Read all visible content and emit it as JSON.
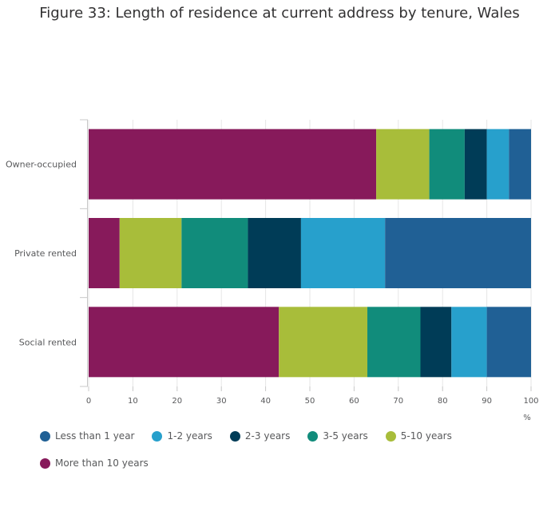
{
  "chart_data": {
    "type": "bar",
    "orientation": "horizontal",
    "stacked": true,
    "title": "Figure 33: Length of residence at current address by tenure, Wales",
    "xlabel": "%",
    "ylabel": "",
    "xlim": [
      0,
      100
    ],
    "xticks": [
      "0",
      "10",
      "20",
      "30",
      "40",
      "50",
      "60",
      "70",
      "80",
      "90",
      "100"
    ],
    "categories": [
      "Owner-occupied",
      "Private rented",
      "Social rented"
    ],
    "series": [
      {
        "name": "More than 10 years",
        "color": "#871a5b",
        "values": [
          65,
          7,
          43
        ]
      },
      {
        "name": "5-10 years",
        "color": "#a8bd3a",
        "values": [
          12,
          14,
          20
        ]
      },
      {
        "name": "3-5 years",
        "color": "#118c7b",
        "values": [
          8,
          15,
          12
        ]
      },
      {
        "name": "2-3 years",
        "color": "#003c57",
        "values": [
          5,
          12,
          7
        ]
      },
      {
        "name": "1-2 years",
        "color": "#27a0cc",
        "values": [
          5,
          19,
          8
        ]
      },
      {
        "name": "Less than 1 year",
        "color": "#206095",
        "values": [
          5,
          33,
          10
        ]
      }
    ],
    "legend_order": [
      "Less than 1 year",
      "1-2 years",
      "2-3 years",
      "3-5 years",
      "5-10 years",
      "More than 10 years"
    ],
    "legend_position": "bottom-left",
    "grid": true
  }
}
